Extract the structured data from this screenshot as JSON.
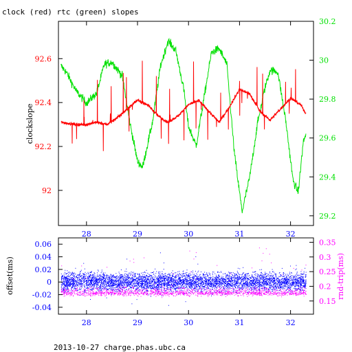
{
  "colors": {
    "clock": "#ff0000",
    "rtc": "#00e000",
    "offset": "#0000ff",
    "roundtrip": "#ff00ff",
    "frame": "#000000"
  },
  "chart_data": [
    {
      "type": "line",
      "title": "clock (red) rtc (green) slopes",
      "ylabel": "clockslope",
      "y2label": "",
      "xlim": [
        27.45,
        32.45
      ],
      "ylim": [
        91.84,
        92.77
      ],
      "y2lim": [
        29.15,
        30.2
      ],
      "xticks": [
        28,
        29,
        30,
        31,
        32
      ],
      "yticks": [
        92,
        92.2,
        92.4,
        92.6
      ],
      "ytick_labels": [
        "92",
        "92.2",
        "92.4",
        "92.6"
      ],
      "y2ticks": [
        29.2,
        29.4,
        29.6,
        29.8,
        30,
        30.2
      ],
      "y2tick_labels": [
        "29.2",
        "29.4",
        "29.6",
        "29.8",
        "30",
        "30.2"
      ],
      "grid": false,
      "series": [
        {
          "name": "clock",
          "axis": "left",
          "x": [
            27.5,
            27.8,
            28.0,
            28.2,
            28.4,
            28.6,
            28.8,
            29.0,
            29.2,
            29.4,
            29.6,
            29.8,
            30.0,
            30.2,
            30.4,
            30.6,
            30.8,
            31.0,
            31.2,
            31.4,
            31.6,
            31.8,
            32.0,
            32.2,
            32.3
          ],
          "y": [
            92.31,
            92.3,
            92.3,
            92.31,
            92.3,
            92.33,
            92.37,
            92.41,
            92.39,
            92.34,
            92.31,
            92.34,
            92.39,
            92.41,
            92.36,
            92.31,
            92.38,
            92.46,
            92.44,
            92.36,
            92.32,
            92.37,
            92.42,
            92.39,
            92.35
          ]
        },
        {
          "name": "rtc",
          "axis": "right",
          "x": [
            27.5,
            27.6,
            27.8,
            28.0,
            28.2,
            28.35,
            28.5,
            28.7,
            28.85,
            29.0,
            29.1,
            29.3,
            29.45,
            29.6,
            29.75,
            29.9,
            30.0,
            30.15,
            30.3,
            30.45,
            30.6,
            30.75,
            30.9,
            31.05,
            31.2,
            31.35,
            31.5,
            31.6,
            31.75,
            31.9,
            32.05,
            32.15,
            32.25,
            32.3
          ],
          "y": [
            29.97,
            29.94,
            29.84,
            29.78,
            29.83,
            29.98,
            29.99,
            29.92,
            29.68,
            29.48,
            29.45,
            29.69,
            29.97,
            30.1,
            30.05,
            29.86,
            29.66,
            29.56,
            29.8,
            30.04,
            30.06,
            29.98,
            29.52,
            29.22,
            29.4,
            29.67,
            29.86,
            29.95,
            29.94,
            29.7,
            29.38,
            29.32,
            29.58,
            29.62
          ]
        }
      ]
    },
    {
      "type": "scatter",
      "title": "",
      "ylabel": "offset(ms)",
      "y2label": "rnd-trip(ms)",
      "xlim": [
        27.45,
        32.45
      ],
      "ylim": [
        -0.051,
        0.07
      ],
      "y2lim": [
        0.105,
        0.365
      ],
      "xticks": [
        28,
        29,
        30,
        31,
        32
      ],
      "yticks": [
        -0.04,
        -0.02,
        0,
        0.02,
        0.04,
        0.06
      ],
      "ytick_labels": [
        "-0.04",
        "-0.02",
        "0",
        "0.02",
        "0.04",
        "0.06"
      ],
      "y2ticks": [
        0.15,
        0.2,
        0.25,
        0.3,
        0.35
      ],
      "y2tick_labels": [
        "0.15",
        "0.2",
        "0.25",
        "0.3",
        "0.35"
      ],
      "grid": false,
      "series": [
        {
          "name": "offset",
          "axis": "left",
          "x": [
            27.5,
            28.0,
            28.5,
            29.0,
            29.5,
            30.0,
            30.5,
            31.0,
            31.5,
            32.0,
            32.3
          ],
          "y": [
            0.0,
            0.001,
            0.0,
            0.0,
            0.001,
            0.0,
            0.0,
            0.001,
            0.0,
            0.0,
            0.0
          ],
          "spread": 0.025
        },
        {
          "name": "rnd-trip",
          "axis": "right",
          "x": [
            27.5,
            28.0,
            28.5,
            29.0,
            29.5,
            30.0,
            30.5,
            31.0,
            31.5,
            32.0,
            32.3
          ],
          "y": [
            0.18,
            0.178,
            0.18,
            0.179,
            0.18,
            0.178,
            0.18,
            0.179,
            0.18,
            0.178,
            0.18
          ],
          "spread": 0.035
        }
      ]
    }
  ],
  "footer": "2013-10-27 charge.phas.ubc.ca"
}
